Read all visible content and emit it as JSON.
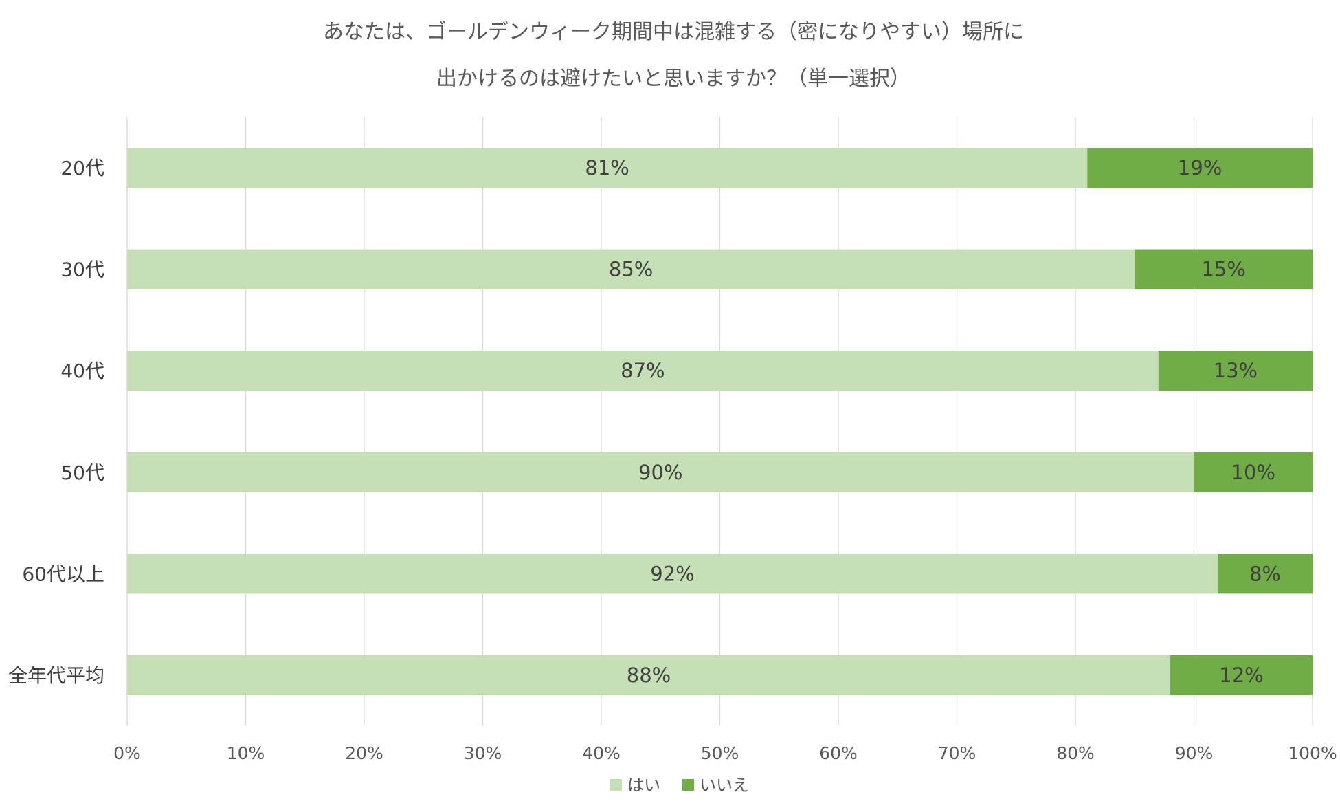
{
  "chart_data": {
    "type": "bar",
    "orientation": "horizontal",
    "stacked": true,
    "title": [
      "あなたは、ゴールデンウィーク期間中は混雑する（密になりやすい）場所に",
      "出かけるのは避けたいと思いますか？（単一選択）"
    ],
    "categories": [
      "20代",
      "30代",
      "40代",
      "50代",
      "60代以上",
      "全年代平均"
    ],
    "series": [
      {
        "name": "はい",
        "color": "#c5e0b4",
        "values": [
          81,
          85,
          87,
          90,
          92,
          88
        ],
        "labels": [
          "81%",
          "85%",
          "87%",
          "90%",
          "92%",
          "88%"
        ]
      },
      {
        "name": "いいえ",
        "color": "#70ad47",
        "values": [
          19,
          15,
          13,
          10,
          8,
          12
        ],
        "labels": [
          "19%",
          "15%",
          "13%",
          "10%",
          "8%",
          "12%"
        ]
      }
    ],
    "xlim": [
      0,
      100
    ],
    "x_ticks": [
      "0%",
      "10%",
      "20%",
      "30%",
      "40%",
      "50%",
      "60%",
      "70%",
      "80%",
      "90%",
      "100%"
    ],
    "grid": true,
    "legend_position": "bottom",
    "grid_color": "#d9d9d9"
  }
}
